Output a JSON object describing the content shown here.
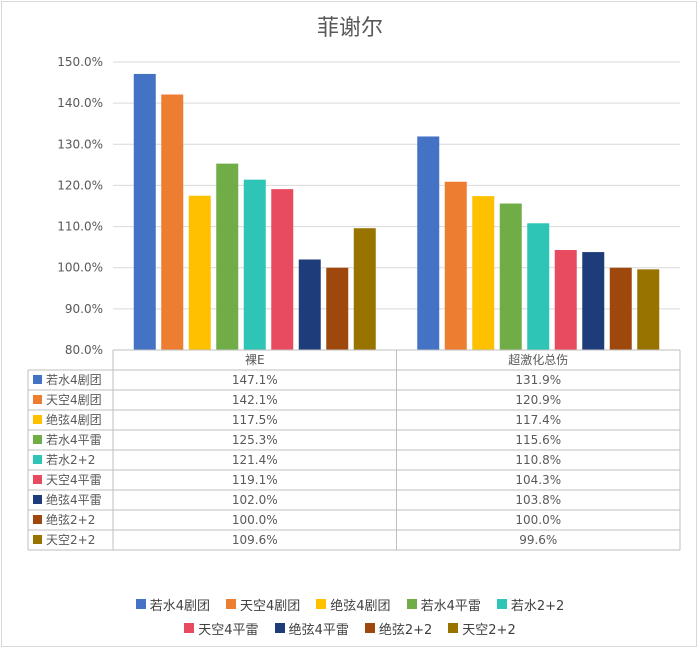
{
  "chart_data": {
    "type": "bar",
    "title": "菲谢尔",
    "categories": [
      "裸E",
      "超激化总伤"
    ],
    "ylim": [
      80,
      150
    ],
    "yticks": [
      "80.0%",
      "90.0%",
      "100.0%",
      "110.0%",
      "120.0%",
      "130.0%",
      "140.0%",
      "150.0%"
    ],
    "grid": true,
    "legend_position": "bottom",
    "data_table": true,
    "series": [
      {
        "name": "若水4剧团",
        "color": "#4472C4",
        "values": [
          147.1,
          131.9
        ],
        "labels": [
          "147.1%",
          "131.9%"
        ]
      },
      {
        "name": "天空4剧团",
        "color": "#ED7D31",
        "values": [
          142.1,
          120.9
        ],
        "labels": [
          "142.1%",
          "120.9%"
        ]
      },
      {
        "name": "绝弦4剧团",
        "color": "#FFC000",
        "values": [
          117.5,
          117.4
        ],
        "labels": [
          "117.5%",
          "117.4%"
        ]
      },
      {
        "name": "若水4平雷",
        "color": "#70AD47",
        "values": [
          125.3,
          115.6
        ],
        "labels": [
          "125.3%",
          "115.6%"
        ]
      },
      {
        "name": "若水2+2",
        "color": "#2EC4B6",
        "values": [
          121.4,
          110.8
        ],
        "labels": [
          "121.4%",
          "110.8%"
        ]
      },
      {
        "name": "天空4平雷",
        "color": "#E84A5F",
        "values": [
          119.1,
          104.3
        ],
        "labels": [
          "119.1%",
          "104.3%"
        ]
      },
      {
        "name": "绝弦4平雷",
        "color": "#1F3C7A",
        "values": [
          102.0,
          103.8
        ],
        "labels": [
          "102.0%",
          "103.8%"
        ]
      },
      {
        "name": "绝弦2+2",
        "color": "#9E480E",
        "values": [
          100.0,
          100.0
        ],
        "labels": [
          "100.0%",
          "100.0%"
        ]
      },
      {
        "name": "天空2+2",
        "color": "#997300",
        "values": [
          109.6,
          99.6
        ],
        "labels": [
          "109.6%",
          "99.6%"
        ]
      }
    ]
  }
}
